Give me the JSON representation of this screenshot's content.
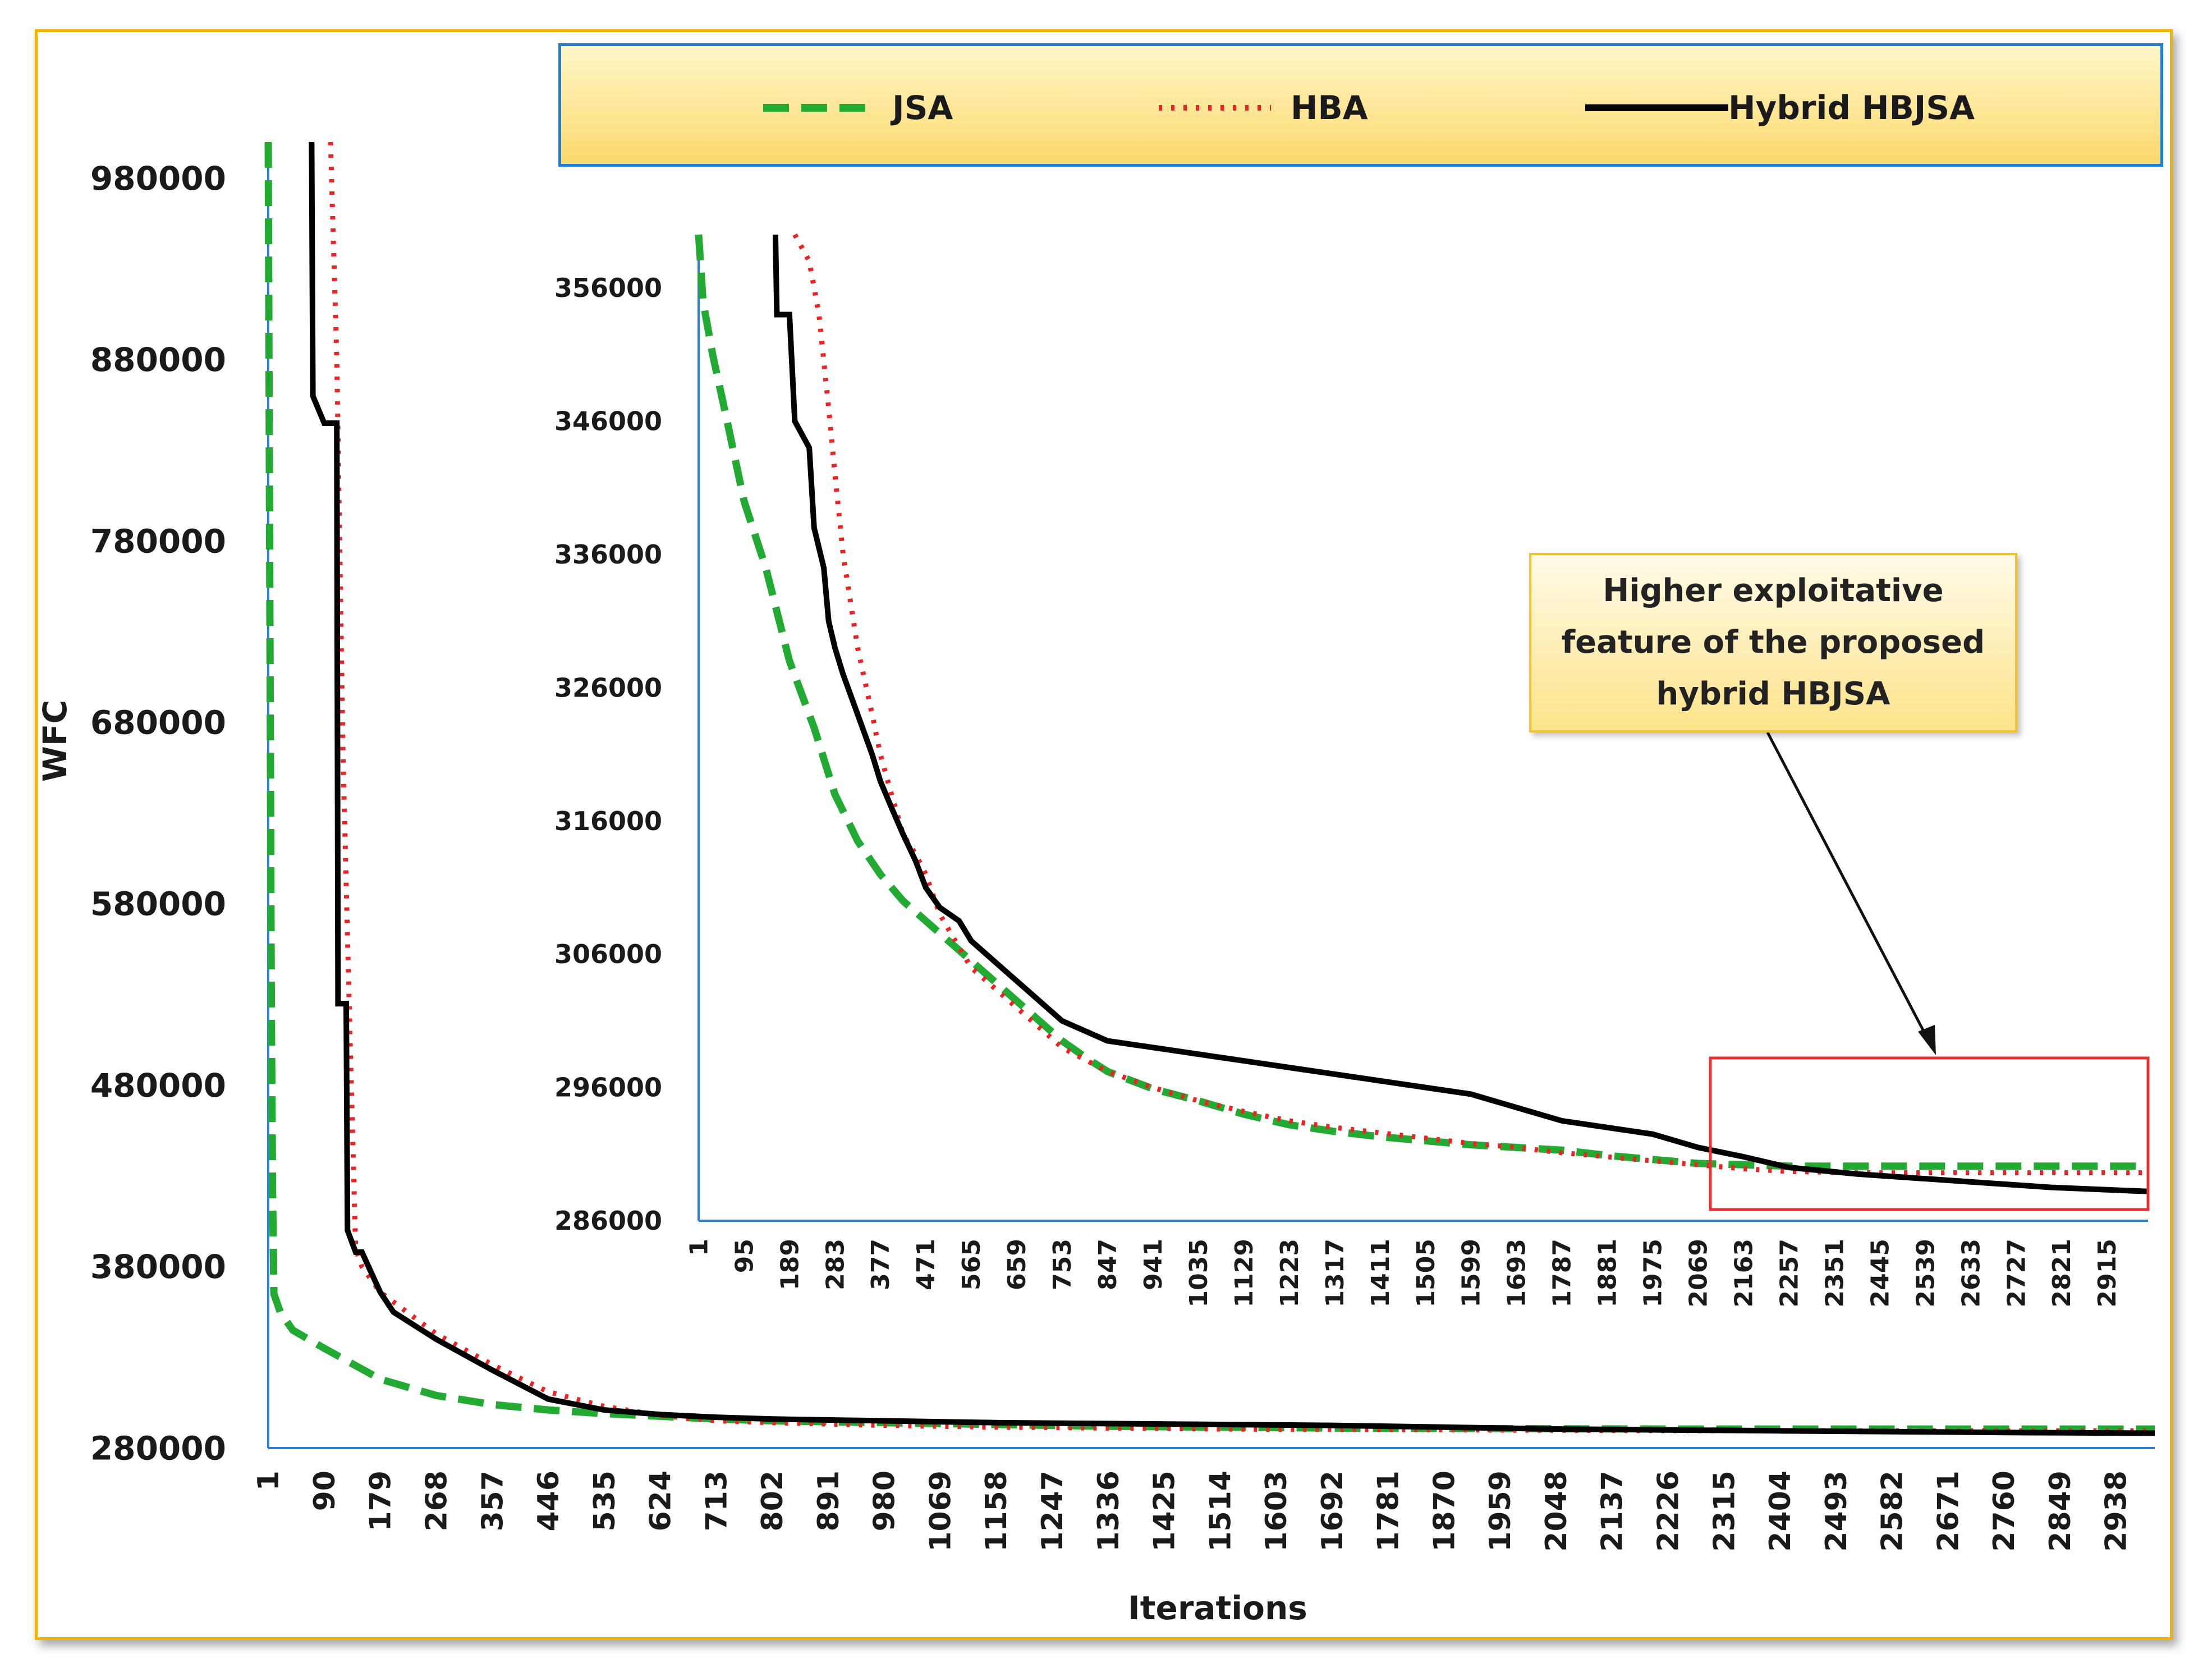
{
  "chart_data": [
    {
      "type": "line",
      "title": "",
      "xlabel": "Iterations",
      "ylabel": "WFC",
      "ylim": [
        280000,
        1000000
      ],
      "xlim": [
        1,
        3000
      ],
      "yticks": [
        "980000",
        "880000",
        "780000",
        "680000",
        "580000",
        "480000",
        "380000",
        "280000"
      ],
      "xticks": [
        "1",
        "90",
        "179",
        "268",
        "357",
        "446",
        "535",
        "624",
        "713",
        "802",
        "891",
        "980",
        "1069",
        "1158",
        "1247",
        "1336",
        "1425",
        "1514",
        "1603",
        "1692",
        "1781",
        "1870",
        "1959",
        "2048",
        "2137",
        "2226",
        "2315",
        "2404",
        "2493",
        "2582",
        "2671",
        "2760",
        "2849",
        "2938"
      ],
      "legend_position": "top",
      "grid": false,
      "series": [
        {
          "name": "JSA",
          "color": "#22aa33",
          "style": "dashed",
          "x": [
            1,
            2,
            4,
            6,
            8,
            10,
            20,
            40,
            90,
            179,
            268,
            357,
            446,
            535,
            624,
            713,
            802,
            980,
            1158,
            1336,
            1514,
            1692,
            1870,
            2048,
            2226,
            2404,
            2600,
            2800,
            3000
          ],
          "y": [
            1000000,
            900000,
            700000,
            520000,
            420000,
            365000,
            355000,
            345000,
            335000,
            318000,
            309000,
            304000,
            301000,
            299000,
            297500,
            296000,
            295000,
            294000,
            293000,
            292000,
            291500,
            291000,
            290800,
            290600,
            290500,
            290500,
            290500,
            290500,
            290500
          ]
        },
        {
          "name": "HBA",
          "color": "#ee2222",
          "style": "dotted",
          "x": [
            100,
            110,
            120,
            130,
            140,
            150,
            179,
            268,
            357,
            446,
            535,
            624,
            713,
            802,
            980,
            1158,
            1336,
            1514,
            1692,
            1870,
            2048,
            2226,
            2404,
            2600,
            2800,
            3000
          ],
          "y": [
            1000000,
            880000,
            660000,
            520000,
            390000,
            380000,
            366000,
            343000,
            326000,
            311000,
            303000,
            298000,
            295000,
            294000,
            292500,
            291500,
            291000,
            290500,
            290200,
            290000,
            289800,
            289600,
            289500,
            289500,
            289500,
            289500
          ]
        },
        {
          "name": "Hybrid HBJSA",
          "color": "#000000",
          "style": "solid",
          "x": [
            70,
            72,
            90,
            110,
            112,
            125,
            127,
            140,
            150,
            179,
            200,
            268,
            357,
            446,
            535,
            624,
            713,
            802,
            980,
            1158,
            1336,
            1514,
            1692,
            1870,
            2048,
            2226,
            2404,
            2600,
            2800,
            3000
          ],
          "y": [
            1000000,
            860000,
            845000,
            845000,
            525000,
            525000,
            400000,
            388000,
            388000,
            366000,
            355000,
            340000,
            323000,
            307000,
            301000,
            298500,
            297000,
            296000,
            295000,
            294000,
            293500,
            293000,
            292500,
            291500,
            290500,
            290000,
            289500,
            289000,
            288500,
            288200
          ]
        }
      ]
    },
    {
      "type": "line",
      "title": "",
      "xlabel": "",
      "ylabel": "",
      "ylim": [
        286000,
        360000
      ],
      "xlim": [
        1,
        3000
      ],
      "yticks": [
        "356000",
        "346000",
        "336000",
        "326000",
        "316000",
        "306000",
        "296000",
        "286000"
      ],
      "xticks": [
        "1",
        "95",
        "189",
        "283",
        "377",
        "471",
        "565",
        "659",
        "753",
        "847",
        "941",
        "1035",
        "1129",
        "1223",
        "1317",
        "1411",
        "1505",
        "1599",
        "1693",
        "1787",
        "1881",
        "1975",
        "2069",
        "2163",
        "2257",
        "2351",
        "2445",
        "2539",
        "2633",
        "2727",
        "2821",
        "2915"
      ],
      "grid": false,
      "annotation": {
        "text": "Higher exploitative\nfeature of the proposed\nhybrid HBJSA"
      },
      "series": [
        {
          "name": "JSA",
          "color": "#22aa33",
          "style": "dashed",
          "x": [
            1,
            10,
            30,
            60,
            95,
            140,
            189,
            240,
            283,
            330,
            377,
            424,
            471,
            518,
            565,
            612,
            659,
            706,
            753,
            800,
            847,
            941,
            1035,
            1129,
            1223,
            1317,
            1411,
            1505,
            1599,
            1693,
            1787,
            1881,
            1975,
            2069,
            2163,
            2257,
            2400,
            2600,
            2800,
            3000
          ],
          "y": [
            360000,
            355000,
            351000,
            346000,
            340000,
            335000,
            328000,
            323000,
            318000,
            314500,
            312000,
            310000,
            308500,
            307000,
            305500,
            304000,
            302500,
            301000,
            299500,
            298300,
            297200,
            295900,
            295000,
            294000,
            293200,
            292700,
            292300,
            292000,
            291700,
            291500,
            291300,
            290900,
            290600,
            290300,
            290200,
            290100,
            290100,
            290100,
            290100,
            290100
          ]
        },
        {
          "name": "HBA",
          "color": "#ee2222",
          "style": "dotted",
          "x": [
            200,
            230,
            250,
            270,
            283,
            300,
            330,
            360,
            377,
            400,
            424,
            450,
            471,
            500,
            540,
            565,
            612,
            659,
            706,
            753,
            847,
            941,
            1035,
            1129,
            1223,
            1317,
            1411,
            1505,
            1599,
            1693,
            1787,
            1881,
            1975,
            2069,
            2163,
            2257,
            2400,
            2600,
            2800,
            3000
          ],
          "y": [
            360000,
            358000,
            354000,
            347000,
            342000,
            336000,
            329000,
            324000,
            321000,
            318000,
            315000,
            313500,
            312000,
            309000,
            306500,
            305000,
            303500,
            302000,
            300500,
            299000,
            297200,
            296000,
            295000,
            294200,
            293500,
            293000,
            292600,
            292200,
            291800,
            291500,
            291100,
            290800,
            290500,
            290200,
            289900,
            289700,
            289600,
            289600,
            289600,
            289600
          ]
        },
        {
          "name": "Hybrid HBJSA",
          "color": "#000000",
          "style": "solid",
          "x": [
            160,
            163,
            189,
            200,
            230,
            240,
            260,
            270,
            283,
            300,
            330,
            360,
            377,
            400,
            424,
            450,
            471,
            500,
            540,
            565,
            612,
            659,
            706,
            753,
            847,
            941,
            1035,
            1129,
            1223,
            1317,
            1411,
            1505,
            1599,
            1693,
            1787,
            1881,
            1975,
            2069,
            2163,
            2257,
            2400,
            2600,
            2800,
            3000
          ],
          "y": [
            360000,
            354000,
            354000,
            346000,
            344000,
            338000,
            335000,
            331000,
            329000,
            327000,
            324000,
            321000,
            319000,
            317000,
            315000,
            313000,
            311000,
            309500,
            308500,
            307000,
            305500,
            304000,
            302500,
            301000,
            299500,
            299000,
            298500,
            298000,
            297500,
            297000,
            296500,
            296000,
            295500,
            294500,
            293500,
            293000,
            292500,
            291500,
            290800,
            290000,
            289500,
            289000,
            288500,
            288200
          ]
        }
      ]
    }
  ]
}
